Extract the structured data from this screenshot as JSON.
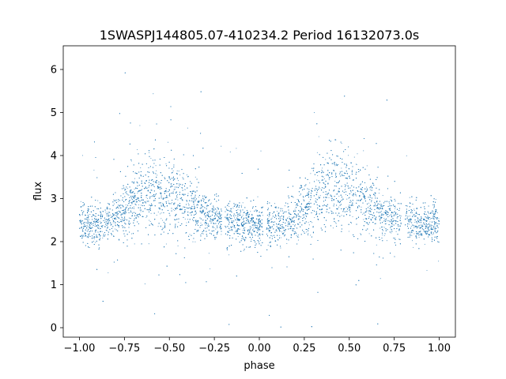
{
  "chart_data": {
    "type": "scatter",
    "title": "1SWASPJ144805.07-410234.2 Period 16132073.0s",
    "xlabel": "phase",
    "ylabel": "flux",
    "xlim": [
      -1.09,
      1.09
    ],
    "ylim": [
      -0.22,
      6.55
    ],
    "x_ticks": [
      -1.0,
      -0.75,
      -0.5,
      -0.25,
      0.0,
      0.25,
      0.5,
      0.75,
      1.0
    ],
    "x_tick_labels": [
      "−1.00",
      "−0.75",
      "−0.50",
      "−0.25",
      "0.00",
      "0.25",
      "0.50",
      "0.75",
      "1.00"
    ],
    "y_ticks": [
      0,
      1,
      2,
      3,
      4,
      5,
      6
    ],
    "y_tick_labels": [
      "0",
      "1",
      "2",
      "3",
      "4",
      "5",
      "6"
    ],
    "grid": false,
    "point_color": "#1f77b4",
    "phase_range": [
      -1.0,
      1.0
    ],
    "flux_profile": [
      {
        "phase": -0.98,
        "center": 2.45,
        "spread": 0.45
      },
      {
        "phase": -0.9,
        "center": 2.35,
        "spread": 0.4
      },
      {
        "phase": -0.8,
        "center": 2.6,
        "spread": 0.5
      },
      {
        "phase": -0.7,
        "center": 3.0,
        "spread": 0.75
      },
      {
        "phase": -0.6,
        "center": 3.2,
        "spread": 0.85
      },
      {
        "phase": -0.5,
        "center": 3.1,
        "spread": 0.8
      },
      {
        "phase": -0.4,
        "center": 2.9,
        "spread": 0.7
      },
      {
        "phase": -0.3,
        "center": 2.55,
        "spread": 0.5
      },
      {
        "phase": -0.2,
        "center": 2.5,
        "spread": 0.45
      },
      {
        "phase": -0.1,
        "center": 2.4,
        "spread": 0.4
      },
      {
        "phase": 0.0,
        "center": 2.45,
        "spread": 0.45
      },
      {
        "phase": 0.1,
        "center": 2.35,
        "spread": 0.4
      },
      {
        "phase": 0.2,
        "center": 2.6,
        "spread": 0.5
      },
      {
        "phase": 0.3,
        "center": 3.0,
        "spread": 0.75
      },
      {
        "phase": 0.4,
        "center": 3.2,
        "spread": 0.85
      },
      {
        "phase": 0.5,
        "center": 3.1,
        "spread": 0.8
      },
      {
        "phase": 0.6,
        "center": 2.9,
        "spread": 0.7
      },
      {
        "phase": 0.7,
        "center": 2.55,
        "spread": 0.5
      },
      {
        "phase": 0.8,
        "center": 2.5,
        "spread": 0.45
      },
      {
        "phase": 0.9,
        "center": 2.4,
        "spread": 0.4
      },
      {
        "phase": 1.0,
        "center": 2.45,
        "spread": 0.45
      }
    ],
    "flux_max": 6.25,
    "flux_min": 0.0,
    "gaps": [
      [
        -0.21,
        -0.19
      ],
      [
        0.02,
        0.04
      ],
      [
        0.79,
        0.81
      ]
    ]
  }
}
